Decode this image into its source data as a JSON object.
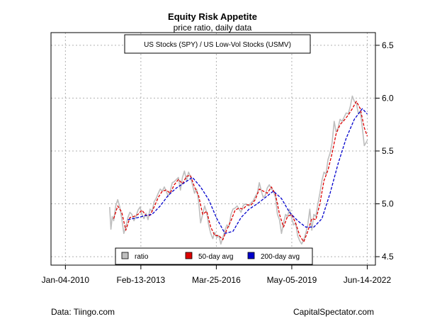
{
  "chart_data": {
    "type": "line",
    "title": "Equity Risk Appetite",
    "subtitle": "price ratio, daily data",
    "series_box_label": "US Stocks (SPY) / US Low-Vol Stocks (USMV)",
    "x_ticks": [
      "Jan-04-2010",
      "Feb-13-2013",
      "Mar-25-2016",
      "May-05-2019",
      "Jun-14-2022"
    ],
    "y_ticks": [
      4.5,
      5.0,
      5.5,
      6.0,
      6.5
    ],
    "ylim": [
      4.42,
      6.62
    ],
    "xlim": [
      "2009-06-01",
      "2022-10-15"
    ],
    "grid": true,
    "legend_position": "bottom-center",
    "series": [
      {
        "name": "ratio",
        "color": "#bebebe",
        "style": "solid",
        "points": [
          [
            "2011-11-01",
            4.97
          ],
          [
            "2011-11-20",
            4.76
          ],
          [
            "2011-12-10",
            4.88
          ],
          [
            "2012-01-01",
            4.84
          ],
          [
            "2012-02-01",
            4.98
          ],
          [
            "2012-03-01",
            5.04
          ],
          [
            "2012-04-01",
            4.97
          ],
          [
            "2012-05-01",
            4.86
          ],
          [
            "2012-06-01",
            4.72
          ],
          [
            "2012-07-01",
            4.78
          ],
          [
            "2012-08-01",
            4.87
          ],
          [
            "2012-09-01",
            4.92
          ],
          [
            "2012-10-01",
            4.9
          ],
          [
            "2012-11-01",
            4.84
          ],
          [
            "2012-12-01",
            4.88
          ],
          [
            "2013-01-01",
            4.94
          ],
          [
            "2013-02-01",
            4.97
          ],
          [
            "2013-03-01",
            4.9
          ],
          [
            "2013-04-01",
            4.86
          ],
          [
            "2013-05-01",
            4.91
          ],
          [
            "2013-06-01",
            4.85
          ],
          [
            "2013-07-01",
            4.95
          ],
          [
            "2013-08-01",
            4.93
          ],
          [
            "2013-09-01",
            5.02
          ],
          [
            "2013-10-01",
            5.05
          ],
          [
            "2013-11-01",
            5.1
          ],
          [
            "2013-12-01",
            5.14
          ],
          [
            "2014-01-01",
            5.12
          ],
          [
            "2014-02-01",
            5.16
          ],
          [
            "2014-03-01",
            5.12
          ],
          [
            "2014-04-01",
            5.07
          ],
          [
            "2014-05-01",
            5.12
          ],
          [
            "2014-06-01",
            5.2
          ],
          [
            "2014-07-01",
            5.21
          ],
          [
            "2014-08-01",
            5.23
          ],
          [
            "2014-09-01",
            5.25
          ],
          [
            "2014-10-01",
            5.13
          ],
          [
            "2014-11-01",
            5.25
          ],
          [
            "2014-12-01",
            5.31
          ],
          [
            "2015-01-01",
            5.22
          ],
          [
            "2015-02-01",
            5.3
          ],
          [
            "2015-03-01",
            5.26
          ],
          [
            "2015-04-01",
            5.18
          ],
          [
            "2015-05-01",
            5.1
          ],
          [
            "2015-06-01",
            5.14
          ],
          [
            "2015-07-01",
            5.03
          ],
          [
            "2015-08-01",
            4.82
          ],
          [
            "2015-09-01",
            4.9
          ],
          [
            "2015-10-01",
            4.98
          ],
          [
            "2015-11-01",
            4.92
          ],
          [
            "2015-12-01",
            4.8
          ],
          [
            "2016-01-01",
            4.72
          ],
          [
            "2016-02-01",
            4.67
          ],
          [
            "2016-03-01",
            4.73
          ],
          [
            "2016-04-01",
            4.68
          ],
          [
            "2016-05-01",
            4.7
          ],
          [
            "2016-06-01",
            4.62
          ],
          [
            "2016-07-01",
            4.68
          ],
          [
            "2016-08-01",
            4.75
          ],
          [
            "2016-09-01",
            4.8
          ],
          [
            "2016-10-01",
            4.78
          ],
          [
            "2016-11-01",
            4.9
          ],
          [
            "2016-12-01",
            4.95
          ],
          [
            "2017-01-01",
            4.96
          ],
          [
            "2017-02-01",
            4.98
          ],
          [
            "2017-03-01",
            4.95
          ],
          [
            "2017-04-01",
            4.92
          ],
          [
            "2017-05-01",
            4.98
          ],
          [
            "2017-06-01",
            5.0
          ],
          [
            "2017-07-01",
            4.99
          ],
          [
            "2017-08-01",
            4.98
          ],
          [
            "2017-09-01",
            5.01
          ],
          [
            "2017-10-01",
            5.03
          ],
          [
            "2017-11-01",
            5.07
          ],
          [
            "2017-12-01",
            5.1
          ],
          [
            "2018-01-01",
            5.2
          ],
          [
            "2018-02-01",
            5.12
          ],
          [
            "2018-03-01",
            5.06
          ],
          [
            "2018-04-01",
            5.08
          ],
          [
            "2018-05-01",
            5.15
          ],
          [
            "2018-06-01",
            5.18
          ],
          [
            "2018-07-01",
            5.14
          ],
          [
            "2018-08-01",
            5.12
          ],
          [
            "2018-09-01",
            5.06
          ],
          [
            "2018-10-01",
            4.9
          ],
          [
            "2018-11-01",
            4.85
          ],
          [
            "2018-12-01",
            4.72
          ],
          [
            "2019-01-01",
            4.82
          ],
          [
            "2019-02-01",
            4.9
          ],
          [
            "2019-03-01",
            4.88
          ],
          [
            "2019-04-01",
            4.95
          ],
          [
            "2019-05-01",
            4.87
          ],
          [
            "2019-06-01",
            4.8
          ],
          [
            "2019-07-01",
            4.82
          ],
          [
            "2019-08-01",
            4.7
          ],
          [
            "2019-09-01",
            4.65
          ],
          [
            "2019-10-01",
            4.62
          ],
          [
            "2019-11-01",
            4.66
          ],
          [
            "2019-12-01",
            4.72
          ],
          [
            "2020-01-01",
            4.8
          ],
          [
            "2020-02-01",
            4.95
          ],
          [
            "2020-03-01",
            4.75
          ],
          [
            "2020-04-01",
            4.9
          ],
          [
            "2020-05-01",
            4.88
          ],
          [
            "2020-06-01",
            5.0
          ],
          [
            "2020-07-01",
            5.1
          ],
          [
            "2020-08-01",
            5.22
          ],
          [
            "2020-09-01",
            5.3
          ],
          [
            "2020-10-01",
            5.28
          ],
          [
            "2020-11-01",
            5.42
          ],
          [
            "2020-12-01",
            5.48
          ],
          [
            "2021-01-01",
            5.58
          ],
          [
            "2021-02-01",
            5.78
          ],
          [
            "2021-03-01",
            5.68
          ],
          [
            "2021-04-01",
            5.72
          ],
          [
            "2021-05-01",
            5.8
          ],
          [
            "2021-06-01",
            5.78
          ],
          [
            "2021-07-01",
            5.82
          ],
          [
            "2021-08-01",
            5.86
          ],
          [
            "2021-09-01",
            5.85
          ],
          [
            "2021-10-01",
            5.92
          ],
          [
            "2021-11-01",
            6.02
          ],
          [
            "2021-12-01",
            5.97
          ],
          [
            "2022-01-01",
            5.95
          ],
          [
            "2022-02-01",
            5.85
          ],
          [
            "2022-03-01",
            5.88
          ],
          [
            "2022-04-01",
            5.72
          ],
          [
            "2022-05-01",
            5.55
          ],
          [
            "2022-06-14",
            5.6
          ]
        ]
      },
      {
        "name": "50-day avg",
        "color": "#dd0000",
        "style": "dashed",
        "points": [
          [
            "2012-01-01",
            4.86
          ],
          [
            "2012-03-01",
            4.98
          ],
          [
            "2012-05-01",
            4.92
          ],
          [
            "2012-07-01",
            4.75
          ],
          [
            "2012-09-01",
            4.87
          ],
          [
            "2012-11-01",
            4.88
          ],
          [
            "2013-01-01",
            4.9
          ],
          [
            "2013-03-01",
            4.94
          ],
          [
            "2013-05-01",
            4.89
          ],
          [
            "2013-07-01",
            4.89
          ],
          [
            "2013-09-01",
            4.97
          ],
          [
            "2013-11-01",
            5.06
          ],
          [
            "2014-01-01",
            5.12
          ],
          [
            "2014-03-01",
            5.13
          ],
          [
            "2014-05-01",
            5.1
          ],
          [
            "2014-07-01",
            5.18
          ],
          [
            "2014-09-01",
            5.23
          ],
          [
            "2014-11-01",
            5.19
          ],
          [
            "2015-01-01",
            5.26
          ],
          [
            "2015-03-01",
            5.27
          ],
          [
            "2015-05-01",
            5.16
          ],
          [
            "2015-07-01",
            5.08
          ],
          [
            "2015-09-01",
            4.9
          ],
          [
            "2015-11-01",
            4.93
          ],
          [
            "2016-01-01",
            4.78
          ],
          [
            "2016-03-01",
            4.7
          ],
          [
            "2016-05-01",
            4.7
          ],
          [
            "2016-07-01",
            4.66
          ],
          [
            "2016-09-01",
            4.76
          ],
          [
            "2016-11-01",
            4.84
          ],
          [
            "2017-01-01",
            4.94
          ],
          [
            "2017-03-01",
            4.96
          ],
          [
            "2017-05-01",
            4.95
          ],
          [
            "2017-07-01",
            4.99
          ],
          [
            "2017-09-01",
            4.99
          ],
          [
            "2017-11-01",
            5.04
          ],
          [
            "2018-01-01",
            5.14
          ],
          [
            "2018-03-01",
            5.12
          ],
          [
            "2018-05-01",
            5.1
          ],
          [
            "2018-07-01",
            5.16
          ],
          [
            "2018-09-01",
            5.09
          ],
          [
            "2018-11-01",
            4.9
          ],
          [
            "2019-01-01",
            4.78
          ],
          [
            "2019-03-01",
            4.88
          ],
          [
            "2019-05-01",
            4.9
          ],
          [
            "2019-07-01",
            4.82
          ],
          [
            "2019-09-01",
            4.7
          ],
          [
            "2019-11-01",
            4.64
          ],
          [
            "2020-01-01",
            4.74
          ],
          [
            "2020-03-01",
            4.86
          ],
          [
            "2020-05-01",
            4.85
          ],
          [
            "2020-07-01",
            5.0
          ],
          [
            "2020-09-01",
            5.22
          ],
          [
            "2020-11-01",
            5.32
          ],
          [
            "2021-01-01",
            5.48
          ],
          [
            "2021-03-01",
            5.66
          ],
          [
            "2021-05-01",
            5.75
          ],
          [
            "2021-07-01",
            5.79
          ],
          [
            "2021-09-01",
            5.84
          ],
          [
            "2021-11-01",
            5.9
          ],
          [
            "2022-01-01",
            5.97
          ],
          [
            "2022-03-01",
            5.9
          ],
          [
            "2022-05-01",
            5.72
          ],
          [
            "2022-06-14",
            5.64
          ]
        ]
      },
      {
        "name": "200-day avg",
        "color": "#0000cc",
        "style": "dashed",
        "points": [
          [
            "2012-08-01",
            4.85
          ],
          [
            "2013-01-01",
            4.87
          ],
          [
            "2013-05-01",
            4.89
          ],
          [
            "2013-08-01",
            4.9
          ],
          [
            "2013-12-01",
            4.98
          ],
          [
            "2014-04-01",
            5.08
          ],
          [
            "2014-08-01",
            5.15
          ],
          [
            "2014-12-01",
            5.2
          ],
          [
            "2015-04-01",
            5.25
          ],
          [
            "2015-08-01",
            5.16
          ],
          [
            "2015-12-01",
            5.04
          ],
          [
            "2016-04-01",
            4.86
          ],
          [
            "2016-08-01",
            4.72
          ],
          [
            "2016-12-01",
            4.74
          ],
          [
            "2017-04-01",
            4.87
          ],
          [
            "2017-08-01",
            4.95
          ],
          [
            "2017-12-01",
            5.0
          ],
          [
            "2018-04-01",
            5.06
          ],
          [
            "2018-08-01",
            5.12
          ],
          [
            "2018-12-01",
            5.05
          ],
          [
            "2019-04-01",
            4.92
          ],
          [
            "2019-08-01",
            4.84
          ],
          [
            "2019-12-01",
            4.78
          ],
          [
            "2020-04-01",
            4.78
          ],
          [
            "2020-08-01",
            4.86
          ],
          [
            "2020-12-01",
            5.1
          ],
          [
            "2021-04-01",
            5.38
          ],
          [
            "2021-08-01",
            5.62
          ],
          [
            "2021-12-01",
            5.8
          ],
          [
            "2022-04-01",
            5.9
          ],
          [
            "2022-06-14",
            5.85
          ]
        ]
      }
    ],
    "legend": [
      {
        "label": "ratio",
        "color": "#bebebe"
      },
      {
        "label": "50-day avg",
        "color": "#dd0000"
      },
      {
        "label": "200-day avg",
        "color": "#0000cc"
      }
    ]
  },
  "footer": {
    "left": "Data: Tiingo.com",
    "right": "CapitalSpectator.com"
  }
}
